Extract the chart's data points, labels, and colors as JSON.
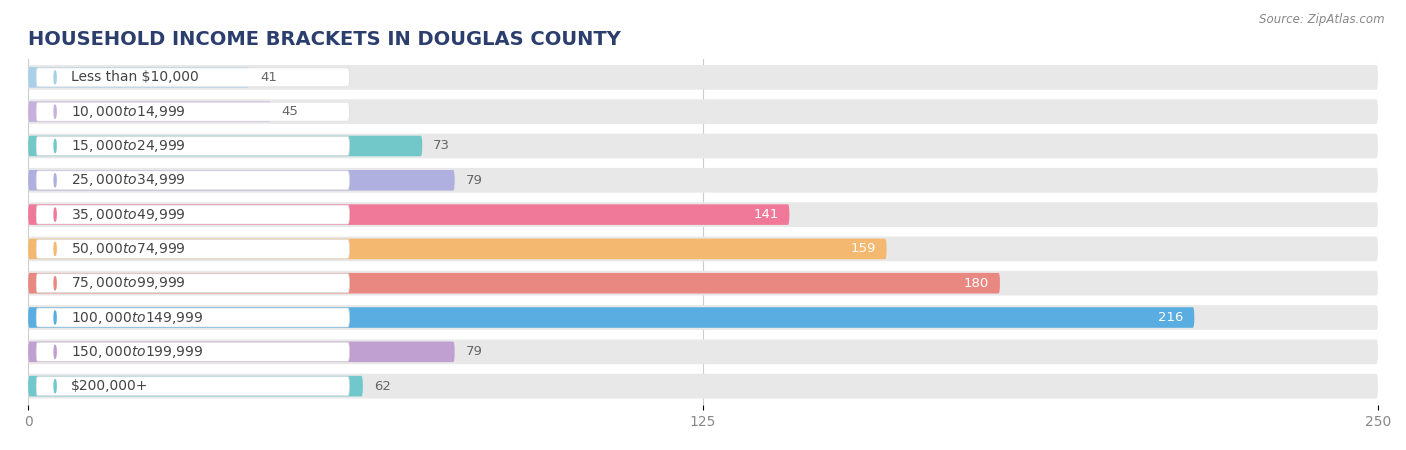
{
  "title": "Household Income Brackets in Douglas County",
  "source": "Source: ZipAtlas.com",
  "categories": [
    "Less than $10,000",
    "$10,000 to $14,999",
    "$15,000 to $24,999",
    "$25,000 to $34,999",
    "$35,000 to $49,999",
    "$50,000 to $74,999",
    "$75,000 to $99,999",
    "$100,000 to $149,999",
    "$150,000 to $199,999",
    "$200,000+"
  ],
  "values": [
    41,
    45,
    73,
    79,
    141,
    159,
    180,
    216,
    79,
    62
  ],
  "bar_colors": [
    "#a8d0e8",
    "#c8b0dc",
    "#72c8c8",
    "#b0b0e0",
    "#f07898",
    "#f5b870",
    "#e88880",
    "#5aade0",
    "#c0a0d0",
    "#70c8cc"
  ],
  "xlim": [
    0,
    250
  ],
  "xticks": [
    0,
    125,
    250
  ],
  "bar_bg_color": "#e8e8e8",
  "title_fontsize": 14,
  "label_fontsize": 10,
  "value_fontsize": 9.5
}
